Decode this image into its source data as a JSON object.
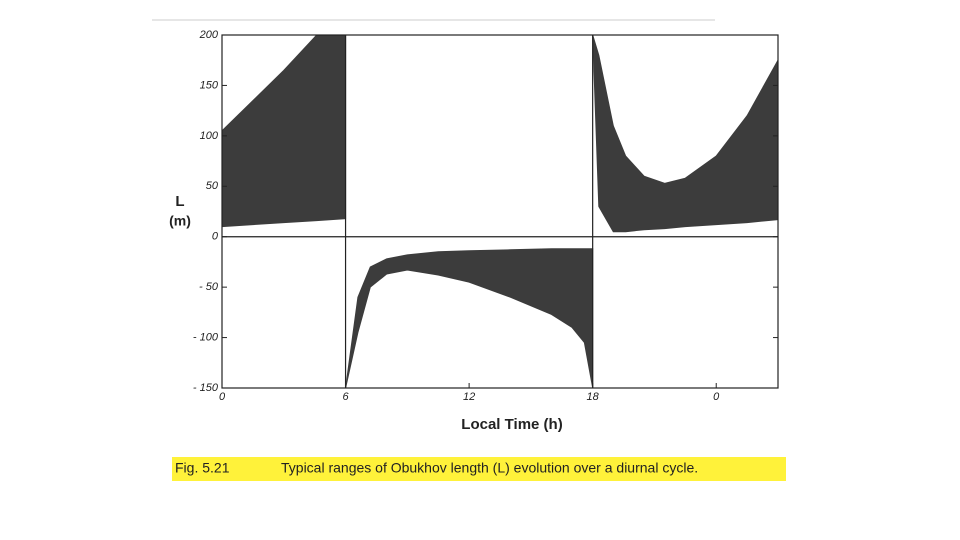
{
  "chart_data": {
    "type": "range-area",
    "x_label": "Local Time (h)",
    "y_label": "L",
    "y_unit": "(m)",
    "xlim": [
      0,
      27
    ],
    "xticks": [
      0,
      6,
      12,
      18,
      {
        "value": 24,
        "label": "0"
      }
    ],
    "ylim": [
      -150,
      200
    ],
    "yticks": [
      200,
      150,
      100,
      50,
      0,
      {
        "value": -50,
        "label": "- 50"
      },
      {
        "value": -100,
        "label": "- 100"
      },
      {
        "value": -150,
        "label": "- 150"
      }
    ],
    "vlines": [
      6,
      18
    ],
    "hline": 0,
    "series": [
      {
        "color": "#3c3c3c",
        "x": [
          0,
          1.5,
          3,
          4.6,
          6
        ],
        "upper": [
          105,
          135,
          165,
          200,
          200
        ],
        "lower": [
          10,
          12,
          14,
          16,
          18
        ]
      },
      {
        "color": "#3c3c3c",
        "x": [
          6,
          6.6,
          7.2,
          8,
          9,
          10.5,
          12,
          14,
          16,
          17,
          17.6,
          18
        ],
        "upper": [
          -150,
          -60,
          -30,
          -22,
          -18,
          -15,
          -14,
          -13,
          -12,
          -12,
          -12,
          -12
        ],
        "lower": [
          -150,
          -95,
          -50,
          -37,
          -33,
          -38,
          -45,
          -60,
          -77,
          -90,
          -105,
          -150
        ]
      },
      {
        "color": "#3c3c3c",
        "x": [
          18,
          18.3,
          19,
          19.6,
          20.5,
          21.5,
          22.5,
          24,
          25.5,
          27
        ],
        "upper": [
          200,
          180,
          110,
          80,
          60,
          53,
          58,
          80,
          120,
          175
        ],
        "lower": [
          200,
          30,
          5,
          5,
          7,
          8,
          10,
          12,
          14,
          17
        ]
      }
    ]
  },
  "caption": {
    "label": "Fig. 5.21",
    "text": "Typical ranges of Obukhov length (L) evolution over a diurnal cycle."
  }
}
